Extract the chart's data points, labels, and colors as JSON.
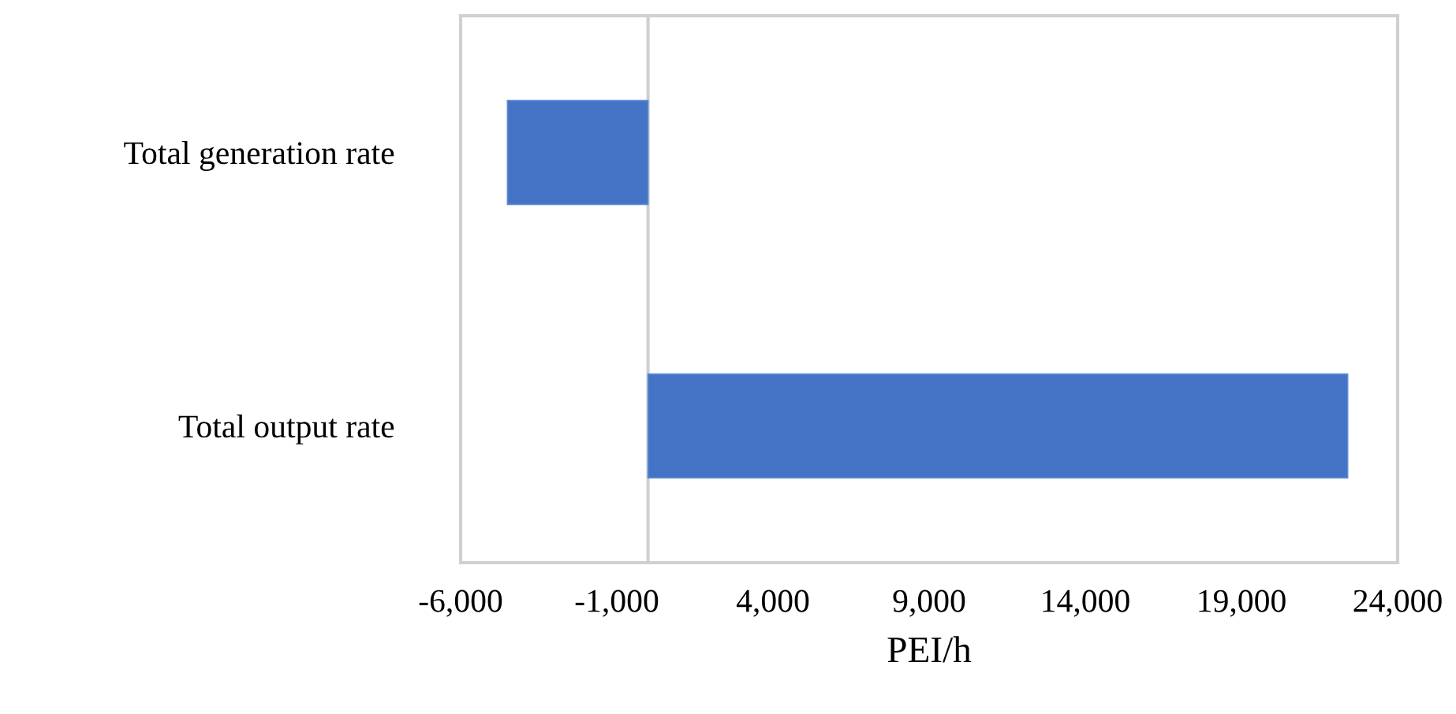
{
  "chart_data": {
    "type": "bar",
    "orientation": "horizontal",
    "xlabel": "PEI/h",
    "categories": [
      "Total generation rate",
      "Total output rate"
    ],
    "values": [
      -4500,
      22400
    ],
    "color": "#4472c4",
    "xlim": [
      -6000,
      24000
    ],
    "xticks": [
      {
        "value": -6000,
        "label": "-6,000"
      },
      {
        "value": -1000,
        "label": "-1,000"
      },
      {
        "value": 4000,
        "label": "4,000"
      },
      {
        "value": 9000,
        "label": "9,000"
      },
      {
        "value": 14000,
        "label": "14,000"
      },
      {
        "value": 19000,
        "label": "19,000"
      },
      {
        "value": 24000,
        "label": "24,000"
      }
    ],
    "grid": false
  }
}
